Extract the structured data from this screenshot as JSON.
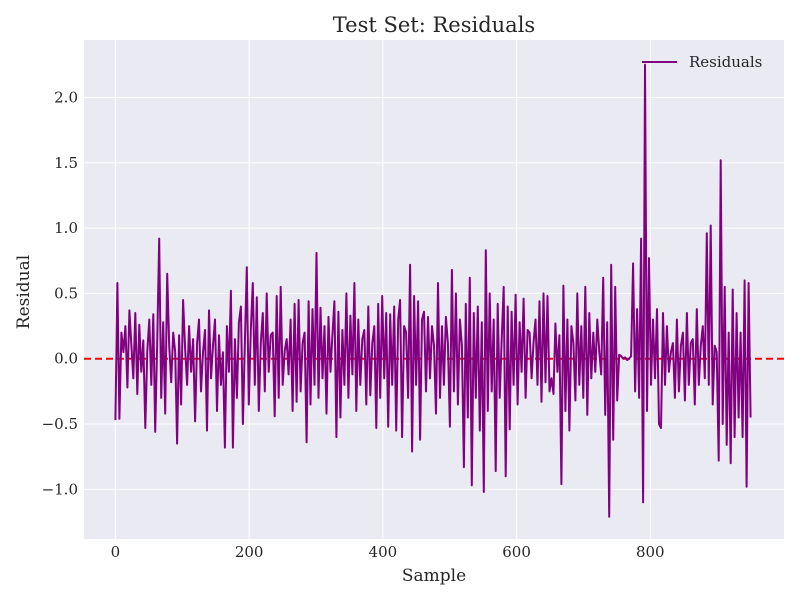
{
  "chart_data": {
    "type": "line",
    "title": "Test Set: Residuals",
    "xlabel": "Sample",
    "ylabel": "Residual",
    "xlim": [
      -47,
      1000
    ],
    "ylim": [
      -1.38,
      2.44
    ],
    "xticks": [
      0,
      200,
      400,
      600,
      800
    ],
    "xtick_labels": [
      "0",
      "200",
      "400",
      "600",
      "800"
    ],
    "yticks": [
      -1.0,
      -0.5,
      0.0,
      0.5,
      1.0,
      1.5,
      2.0
    ],
    "ytick_labels": [
      "−1.0",
      "−0.5",
      "0.0",
      "0.5",
      "1.0",
      "1.5",
      "2.0"
    ],
    "grid": true,
    "legend_position": "top-right",
    "reference_line": {
      "y": 0.0,
      "style": "dashed",
      "color": "#ff0000"
    },
    "series": [
      {
        "name": "Residuals",
        "color": "#800080",
        "x_start": 0,
        "x_step": 1,
        "y": [
          -0.47,
          0.58,
          -0.46,
          0.2,
          0.05,
          0.25,
          -0.22,
          0.37,
          0.1,
          -0.15,
          0.35,
          -0.27,
          0.26,
          -0.1,
          0.14,
          -0.53,
          0.06,
          0.3,
          -0.2,
          0.34,
          -0.56,
          0.12,
          0.92,
          -0.3,
          0.28,
          -0.42,
          0.65,
          0.1,
          -0.18,
          0.2,
          0.05,
          -0.65,
          0.18,
          -0.35,
          0.45,
          0.08,
          -0.2,
          0.25,
          -0.1,
          0.15,
          -0.48,
          0.12,
          0.3,
          -0.25,
          0.05,
          0.22,
          -0.55,
          0.37,
          -0.15,
          0.1,
          0.3,
          -0.4,
          0.18,
          -0.2,
          0.05,
          -0.68,
          0.25,
          -0.1,
          0.52,
          -0.68,
          0.15,
          -0.3,
          0.28,
          0.4,
          -0.5,
          0.1,
          0.7,
          -0.35,
          0.22,
          0.58,
          -0.2,
          0.47,
          -0.4,
          0.12,
          0.35,
          -0.25,
          0.5,
          -0.1,
          0.18,
          0.2,
          -0.44,
          0.48,
          -0.3,
          0.55,
          -0.2,
          0.06,
          0.15,
          -0.12,
          0.3,
          -0.4,
          0.42,
          -0.33,
          0.45,
          -0.25,
          0.12,
          0.2,
          -0.64,
          0.44,
          -0.35,
          0.38,
          -0.2,
          0.81,
          -0.3,
          0.39,
          -0.15,
          0.25,
          -0.42,
          0.32,
          -0.1,
          0.18,
          0.44,
          -0.6,
          0.36,
          -0.45,
          0.22,
          -0.2,
          0.5,
          -0.3,
          0.33,
          -0.12,
          0.58,
          -0.4,
          0.3,
          -0.2,
          0.15,
          0.22,
          -0.35,
          0.4,
          -0.28,
          0.12,
          0.25,
          -0.53,
          0.42,
          -0.3,
          0.48,
          -0.15,
          0.35,
          -0.52,
          0.34,
          -0.2,
          0.4,
          -0.55,
          0.3,
          0.45,
          -0.6,
          0.25,
          0.2,
          -0.3,
          0.72,
          -0.71,
          0.48,
          -0.2,
          0.44,
          -0.62,
          0.3,
          0.36,
          -0.25,
          0.32,
          -0.15,
          0.25,
          0.1,
          -0.42,
          0.58,
          -0.3,
          0.25,
          -0.2,
          0.32,
          0.12,
          -0.52,
          0.68,
          -0.25,
          0.5,
          -0.35,
          0.3,
          0.1,
          -0.83,
          0.42,
          -0.45,
          0.62,
          -0.97,
          0.35,
          -0.3,
          0.4,
          -0.55,
          0.28,
          -1.02,
          0.83,
          -0.4,
          0.5,
          -0.25,
          0.3,
          -0.86,
          0.42,
          -0.3,
          0.15,
          0.55,
          -0.9,
          0.4,
          -0.54,
          0.36,
          -0.2,
          0.49,
          -0.35,
          0.28,
          -0.1,
          0.46,
          -0.3,
          0.22,
          0.2,
          -0.15,
          0.12,
          0.3,
          -0.2,
          0.44,
          -0.33,
          0.5,
          -0.18,
          0.48,
          -0.25,
          -0.15,
          -0.27,
          0.27,
          -0.1,
          0.18,
          -0.96,
          0.56,
          -0.4,
          0.3,
          -0.55,
          0.25,
          0.12,
          -0.32,
          0.5,
          -0.2,
          0.25,
          -0.3,
          0.55,
          -0.43,
          0.35,
          -0.15,
          0.2,
          -0.1,
          0.3,
          0.05,
          -0.12,
          0.62,
          -0.43,
          0.28,
          -1.21,
          0.72,
          -0.62,
          0.55,
          -0.32,
          0.03,
          0.02,
          0.0,
          0.01,
          -0.01,
          0.0,
          0.02,
          0.73,
          -0.25,
          0.38,
          -0.3,
          0.92,
          -1.1,
          2.25,
          -0.4,
          0.77,
          -0.2,
          0.3,
          -0.15,
          0.38,
          -0.5,
          -0.53,
          0.35,
          -0.2,
          0.25,
          -0.1,
          0.05,
          0.12,
          -0.3,
          0.3,
          -0.25,
          0.1,
          0.2,
          -0.32,
          0.35,
          -0.2,
          0.12,
          0.15,
          -0.35,
          0.38,
          -0.2,
          0.1,
          0.25,
          -0.15,
          0.96,
          -0.2,
          1.02,
          -0.35,
          0.1,
          0.05,
          -0.78,
          1.52,
          -0.5,
          0.55,
          -0.66,
          0.2,
          -0.8,
          0.53,
          -0.6,
          0.35,
          -0.45,
          0.2,
          -0.6,
          0.6,
          -0.98,
          0.58,
          -0.45
        ]
      }
    ]
  }
}
